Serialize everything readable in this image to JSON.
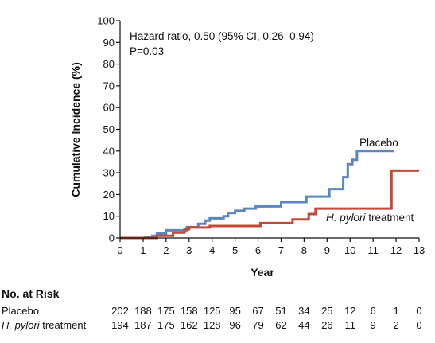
{
  "chart_data": {
    "type": "line",
    "step": true,
    "xlabel": "Year",
    "ylabel": "Cumulative Incidence (%)",
    "xlim": [
      0,
      13
    ],
    "ylim": [
      0,
      100
    ],
    "x_ticks": [
      "0",
      "1",
      "2",
      "3",
      "4",
      "5",
      "6",
      "7",
      "8",
      "9",
      "10",
      "11",
      "12",
      "13"
    ],
    "y_ticks": [
      "0",
      "10",
      "20",
      "30",
      "40",
      "50",
      "60",
      "70",
      "80",
      "90",
      "100"
    ],
    "annotation_lines": [
      "Hazard ratio, 0.50 (95% CI, 0.26–0.94)",
      "P=0.03"
    ],
    "grid": false,
    "series": [
      {
        "name": "Placebo",
        "color": "#5b86c0",
        "points": [
          [
            0,
            0
          ],
          [
            1.1,
            0
          ],
          [
            1.1,
            0.5
          ],
          [
            1.4,
            0.5
          ],
          [
            1.4,
            1
          ],
          [
            1.6,
            1
          ],
          [
            1.6,
            2
          ],
          [
            2.0,
            2
          ],
          [
            2.0,
            3.5
          ],
          [
            2.9,
            3.5
          ],
          [
            2.9,
            5
          ],
          [
            3.4,
            5
          ],
          [
            3.4,
            6.5
          ],
          [
            3.7,
            6.5
          ],
          [
            3.7,
            8
          ],
          [
            3.9,
            8
          ],
          [
            3.9,
            9
          ],
          [
            4.5,
            9
          ],
          [
            4.5,
            10
          ],
          [
            4.7,
            10
          ],
          [
            4.7,
            11.5
          ],
          [
            5.0,
            11.5
          ],
          [
            5.0,
            12.5
          ],
          [
            5.4,
            12.5
          ],
          [
            5.4,
            13.5
          ],
          [
            5.9,
            13.5
          ],
          [
            5.9,
            14.5
          ],
          [
            7.0,
            14.5
          ],
          [
            7.0,
            16.5
          ],
          [
            8.1,
            16.5
          ],
          [
            8.1,
            19
          ],
          [
            9.1,
            19
          ],
          [
            9.1,
            22.5
          ],
          [
            9.7,
            22.5
          ],
          [
            9.7,
            28
          ],
          [
            9.9,
            28
          ],
          [
            9.9,
            34
          ],
          [
            10.1,
            34
          ],
          [
            10.1,
            36
          ],
          [
            10.3,
            36
          ],
          [
            10.3,
            40
          ],
          [
            11.9,
            40
          ]
        ]
      },
      {
        "name": "H. pylori treatment",
        "name_prefix": "H. pylori",
        "name_suffix": " treatment",
        "color": "#c24a35",
        "points": [
          [
            0,
            0
          ],
          [
            1.6,
            0
          ],
          [
            1.6,
            1
          ],
          [
            2.3,
            1
          ],
          [
            2.3,
            2.5
          ],
          [
            2.8,
            2.5
          ],
          [
            2.8,
            4
          ],
          [
            3.0,
            4
          ],
          [
            3.0,
            4.8
          ],
          [
            3.9,
            4.8
          ],
          [
            3.9,
            5.5
          ],
          [
            6.1,
            5.5
          ],
          [
            6.1,
            6.8
          ],
          [
            7.5,
            6.8
          ],
          [
            7.5,
            8.5
          ],
          [
            8.2,
            8.5
          ],
          [
            8.2,
            11
          ],
          [
            8.5,
            11
          ],
          [
            8.5,
            13.5
          ],
          [
            11.8,
            13.5
          ],
          [
            11.8,
            31
          ],
          [
            13,
            31
          ]
        ]
      }
    ]
  },
  "risk_table": {
    "title": "No. at Risk",
    "times": [
      0,
      1,
      2,
      3,
      4,
      5,
      6,
      7,
      8,
      9,
      10,
      11,
      12,
      13
    ],
    "rows": [
      {
        "label": "Placebo",
        "values": [
          "202",
          "188",
          "175",
          "158",
          "125",
          "95",
          "67",
          "51",
          "34",
          "25",
          "12",
          "6",
          "1",
          "0"
        ]
      },
      {
        "label_italic": "H. pylori",
        "label_rest": " treatment",
        "values": [
          "194",
          "187",
          "175",
          "162",
          "128",
          "96",
          "79",
          "62",
          "44",
          "26",
          "11",
          "9",
          "2",
          "0"
        ]
      }
    ]
  }
}
